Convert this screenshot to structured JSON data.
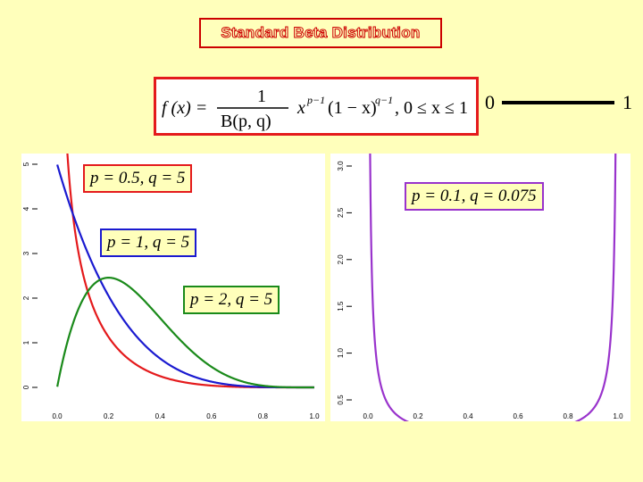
{
  "title": "Standard Beta Distribution",
  "formula": {
    "lhs": "f (x) =",
    "numerator": "1",
    "denominator": "B(p, q)",
    "body": "x",
    "exp1": "p−1",
    "mid": "(1 − x)",
    "exp2": "q−1",
    "cond": ",  0 ≤ x ≤ 1"
  },
  "range": {
    "start": "0",
    "end": "1"
  },
  "colors": {
    "red": "#E41A1C",
    "blue": "#1A1AD0",
    "green": "#1A8A1A",
    "purple": "#9933CC",
    "title_red": "#CC0000"
  },
  "chart_data": [
    {
      "type": "line",
      "xlim": [
        0,
        1
      ],
      "ylim": [
        0,
        5
      ],
      "x_ticks": [
        "0.0",
        "0.2",
        "0.4",
        "0.6",
        "0.8",
        "1.0"
      ],
      "y_ticks": [
        "0",
        "1",
        "2",
        "3",
        "4",
        "5"
      ],
      "series": [
        {
          "name": "p = 0.5,  q = 5",
          "p": 0.5,
          "q": 5,
          "color": "#E41A1C"
        },
        {
          "name": "p = 1,  q = 5",
          "p": 1,
          "q": 5,
          "color": "#1A1AD0"
        },
        {
          "name": "p = 2,  q = 5",
          "p": 2,
          "q": 5,
          "color": "#1A8A1A"
        }
      ]
    },
    {
      "type": "line",
      "xlim": [
        0,
        1
      ],
      "ylim": [
        0.5,
        3.0
      ],
      "x_ticks": [
        "0.0",
        "0.2",
        "0.4",
        "0.6",
        "0.8",
        "1.0"
      ],
      "y_ticks": [
        "0.5",
        "1.0",
        "1.5",
        "2.0",
        "2.5",
        "3.0"
      ],
      "series": [
        {
          "name": "p = 0.1,  q = 0.075",
          "p": 0.1,
          "q": 0.075,
          "color": "#9933CC"
        }
      ]
    }
  ]
}
